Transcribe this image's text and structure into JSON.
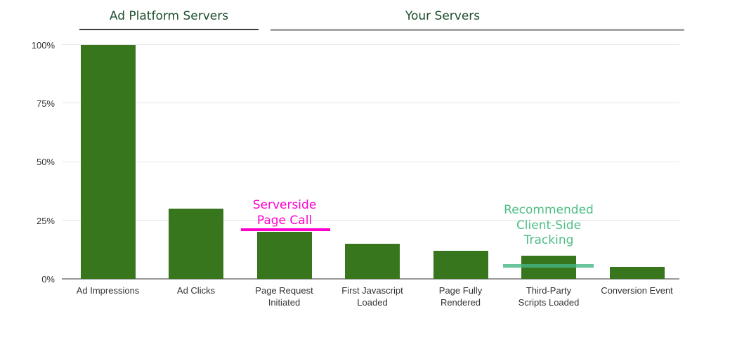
{
  "groups": [
    {
      "label": "Ad Platform Servers",
      "label_color": "#1d4d2b",
      "rule_color": "#3d3d3d"
    },
    {
      "label": "Your Servers",
      "label_color": "#1d4d2b",
      "rule_color": "#a7a7a7"
    }
  ],
  "chart_data": {
    "type": "bar",
    "categories": [
      "Ad Impressions",
      "Ad Clicks",
      "Page Request\nInitiated",
      "First Javascript\nLoaded",
      "Page Fully\nRendered",
      "Third-Party\nScripts Loaded",
      "Conversion Event"
    ],
    "values": [
      100,
      30,
      20,
      15,
      12,
      10,
      5
    ],
    "title": "",
    "xlabel": "",
    "ylabel": "",
    "ylim": [
      0,
      100
    ],
    "y_tick_values": [
      0,
      25,
      50,
      75,
      100
    ],
    "y_tick_labels": [
      "0%",
      "25%",
      "50%",
      "75%",
      "100%"
    ],
    "grid": true,
    "legend": false,
    "bar_color": "#38761d",
    "grid_color": "#e6e6e6",
    "axis_line_color": "#999999"
  },
  "annotations": {
    "serverside": {
      "lines": [
        "Serverside",
        "Page Call"
      ],
      "color": "#ff00cc",
      "value_pct": 20.5
    },
    "recommended": {
      "lines": [
        "Recommended",
        "Client-Side",
        "Tracking"
      ],
      "text_color": "#4ebd85",
      "line_color": "#45b786",
      "value_pct": 6
    }
  }
}
